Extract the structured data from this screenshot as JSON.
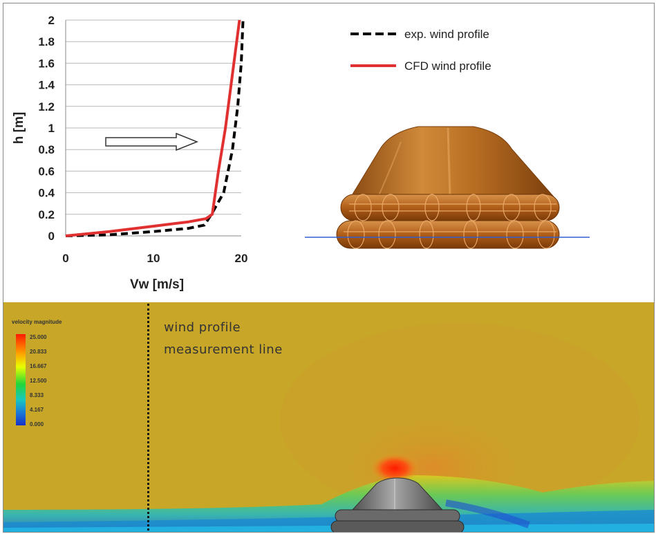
{
  "chart_data": {
    "type": "line",
    "xlabel": "Vw [m/s]",
    "ylabel": "h [m]",
    "xlim": [
      0,
      20
    ],
    "ylim": [
      0,
      2
    ],
    "xticks": [
      0,
      10,
      20
    ],
    "yticks": [
      0,
      0.2,
      0.4,
      0.6,
      0.8,
      1,
      1.2,
      1.4,
      1.6,
      1.8,
      2
    ],
    "grid": "horizontal",
    "legend_position": "top-right",
    "series": [
      {
        "name": "exp. wind profile",
        "style": "dashed",
        "color": "#000000",
        "x": [
          0,
          5,
          10,
          14,
          15.8,
          16.6,
          18.0,
          19.0,
          19.6,
          20.0,
          20.2
        ],
        "y": [
          0,
          0.01,
          0.04,
          0.07,
          0.1,
          0.2,
          0.4,
          0.8,
          1.2,
          1.6,
          2.0
        ]
      },
      {
        "name": "CFD wind profile",
        "style": "solid",
        "color": "#e03030",
        "x": [
          0,
          5,
          10,
          14,
          16.0,
          16.7,
          17.4,
          18.2,
          19.0,
          19.8
        ],
        "y": [
          0,
          0.04,
          0.09,
          0.13,
          0.16,
          0.2,
          0.6,
          1.0,
          1.5,
          2.0
        ]
      }
    ]
  },
  "legend_items": [
    "exp. wind profile",
    "CFD wind profile"
  ],
  "ytick_labels": [
    "0",
    "0.2",
    "0.4",
    "0.6",
    "0.8",
    "1",
    "1.2",
    "1.4",
    "1.6",
    "1.8",
    "2"
  ],
  "xtick_labels": [
    "0",
    "10",
    "20"
  ],
  "colorbar": {
    "title": "velocity magnitude",
    "labels": [
      "25.000",
      "20.833",
      "16.667",
      "12.500",
      "8.333",
      "4.167",
      "0.000"
    ]
  },
  "annotation": {
    "line1": "wind profile",
    "line2": "measurement line"
  },
  "colors": {
    "exp": "#000000",
    "cfd": "#e03030",
    "model": "#b8621c",
    "ground_line": "#3060d0",
    "cfd_background": "#c7a628"
  }
}
